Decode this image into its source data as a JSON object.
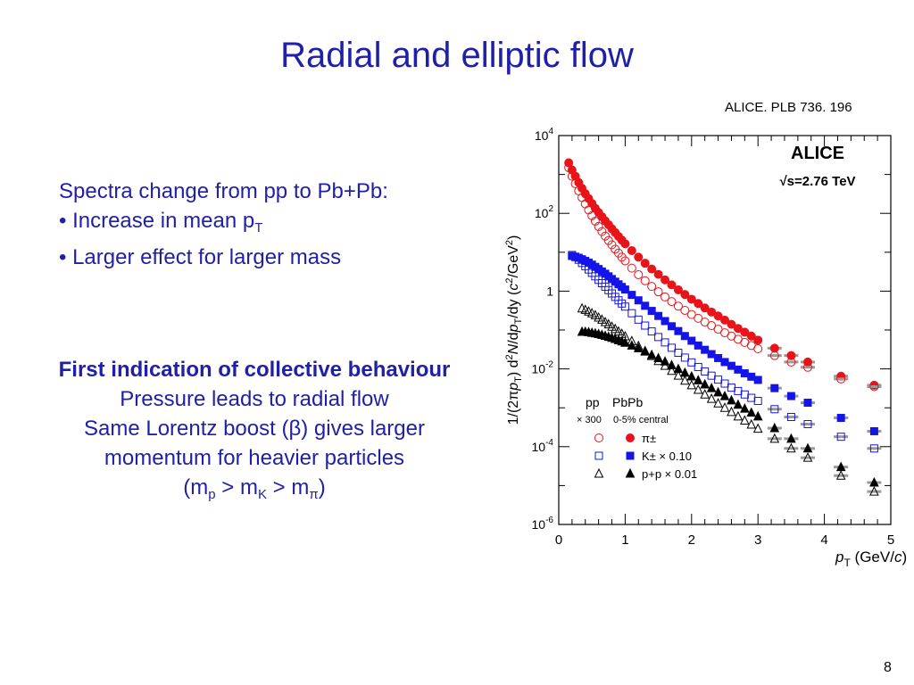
{
  "slide": {
    "title": "Radial and elliptic flow",
    "reference": "ALICE. PLB 736. 196",
    "intro": "Spectra change from pp to Pb+Pb:",
    "bullet1_text": "• Increase in mean p",
    "bullet1_sub": "T",
    "bullet2": "• Larger effect for larger mass",
    "line1": "First indication of collective behaviour",
    "line2": "Pressure leads to radial flow",
    "line3": "Same Lorentz boost (β) gives larger",
    "line4": "momentum for heavier particles",
    "mass_open": "(m",
    "mass_p": "p",
    "mass_gt1": " > m",
    "mass_K": "K",
    "mass_gt2": " > m",
    "mass_pi": "π",
    "mass_close": ")",
    "page_number": "8"
  },
  "chart_data": {
    "type": "scatter",
    "experiment": "ALICE",
    "energy": "√s=2.76 TeV",
    "xlabel": "p_T (GeV/c)",
    "ylabel": "1/(2πp_T) d²N/dp_T/dy (c²/GeV²)",
    "xlim": [
      0,
      5
    ],
    "ylim": [
      1e-06,
      10000
    ],
    "log_y": true,
    "x_ticks": [
      "0",
      "1",
      "2",
      "3",
      "4",
      "5"
    ],
    "y_ticks": [
      "10^-6",
      "10^-4",
      "10^-2",
      "1",
      "10^2",
      "10^4"
    ],
    "legend": {
      "pp_header": "pp",
      "pbpb_header": "PbPb",
      "pp_note": "× 300",
      "pbpb_note": "0-5% central",
      "entries": [
        "π±",
        "K± × 0.10",
        "p+p × 0.01"
      ]
    },
    "series": [
      {
        "name": "π±",
        "system": "PbPb",
        "marker": "filled-circle",
        "color": "#e8141a",
        "x": [
          0.15,
          0.2,
          0.25,
          0.3,
          0.35,
          0.4,
          0.45,
          0.5,
          0.55,
          0.6,
          0.65,
          0.7,
          0.75,
          0.8,
          0.85,
          0.9,
          0.95,
          1.0,
          1.1,
          1.2,
          1.3,
          1.4,
          1.5,
          1.6,
          1.7,
          1.8,
          1.9,
          2.0,
          2.1,
          2.2,
          2.3,
          2.4,
          2.5,
          2.6,
          2.7,
          2.8,
          2.9,
          3.0,
          3.25,
          3.5,
          3.75,
          4.25,
          4.75
        ],
        "y": [
          2000,
          1300,
          900,
          620,
          440,
          320,
          240,
          180,
          135,
          105,
          82,
          64,
          51,
          40,
          32,
          25.5,
          20.5,
          16.5,
          11,
          7.5,
          5.2,
          3.7,
          2.7,
          1.95,
          1.45,
          1.08,
          0.82,
          0.62,
          0.48,
          0.37,
          0.29,
          0.23,
          0.18,
          0.14,
          0.11,
          0.088,
          0.07,
          0.055,
          0.034,
          0.022,
          0.015,
          0.0065,
          0.0038
        ]
      },
      {
        "name": "π± pp",
        "system": "pp",
        "marker": "open-circle",
        "color": "#e8141a",
        "x": [
          0.15,
          0.2,
          0.25,
          0.3,
          0.35,
          0.4,
          0.45,
          0.5,
          0.55,
          0.6,
          0.65,
          0.7,
          0.75,
          0.8,
          0.85,
          0.9,
          0.95,
          1.0,
          1.1,
          1.2,
          1.3,
          1.4,
          1.5,
          1.6,
          1.7,
          1.8,
          1.9,
          2.0,
          2.1,
          2.2,
          2.3,
          2.4,
          2.5,
          2.6,
          2.7,
          2.8,
          2.9,
          3.0,
          3.25,
          3.5,
          3.75,
          4.25,
          4.75
        ],
        "y": [
          1500,
          900,
          580,
          380,
          255,
          175,
          122,
          87,
          63,
          46,
          34,
          26,
          20,
          15.5,
          12,
          9.5,
          7.5,
          6,
          3.9,
          2.65,
          1.85,
          1.32,
          0.96,
          0.71,
          0.54,
          0.41,
          0.32,
          0.25,
          0.2,
          0.16,
          0.13,
          0.105,
          0.085,
          0.07,
          0.058,
          0.048,
          0.04,
          0.033,
          0.022,
          0.015,
          0.011,
          0.0055,
          0.0035
        ]
      },
      {
        "name": "K± × 0.10",
        "system": "PbPb",
        "marker": "filled-square",
        "color": "#1414e8",
        "x": [
          0.2,
          0.25,
          0.3,
          0.35,
          0.4,
          0.45,
          0.5,
          0.55,
          0.6,
          0.65,
          0.7,
          0.75,
          0.8,
          0.85,
          0.9,
          0.95,
          1.0,
          1.1,
          1.2,
          1.3,
          1.4,
          1.5,
          1.6,
          1.7,
          1.8,
          1.9,
          2.0,
          2.1,
          2.2,
          2.3,
          2.4,
          2.5,
          2.6,
          2.7,
          2.8,
          2.9,
          3.0,
          3.25,
          3.5,
          3.75,
          4.25,
          4.75
        ],
        "y": [
          8,
          7.7,
          7.2,
          6.6,
          6,
          5.4,
          4.8,
          4.2,
          3.7,
          3.2,
          2.8,
          2.4,
          2.05,
          1.75,
          1.5,
          1.28,
          1.1,
          0.8,
          0.58,
          0.42,
          0.31,
          0.23,
          0.17,
          0.125,
          0.094,
          0.07,
          0.053,
          0.04,
          0.031,
          0.024,
          0.019,
          0.015,
          0.012,
          0.0096,
          0.0077,
          0.0063,
          0.0052,
          0.0032,
          0.002,
          0.00135,
          0.00055,
          0.00025
        ]
      },
      {
        "name": "K± pp",
        "system": "pp",
        "marker": "open-square",
        "color": "#1414e8",
        "x": [
          0.2,
          0.25,
          0.3,
          0.35,
          0.4,
          0.45,
          0.5,
          0.55,
          0.6,
          0.65,
          0.7,
          0.75,
          0.8,
          0.85,
          0.9,
          0.95,
          1.0,
          1.1,
          1.2,
          1.3,
          1.4,
          1.5,
          1.6,
          1.7,
          1.8,
          1.9,
          2.0,
          2.1,
          2.2,
          2.3,
          2.4,
          2.5,
          2.6,
          2.7,
          2.8,
          2.9,
          3.0,
          3.25,
          3.5,
          3.75,
          4.25,
          4.75
        ],
        "y": [
          8.5,
          7.5,
          6.4,
          5.3,
          4.4,
          3.6,
          2.95,
          2.4,
          1.95,
          1.6,
          1.3,
          1.06,
          0.87,
          0.71,
          0.58,
          0.48,
          0.4,
          0.27,
          0.185,
          0.13,
          0.092,
          0.066,
          0.048,
          0.035,
          0.026,
          0.0195,
          0.0147,
          0.0112,
          0.0086,
          0.0067,
          0.0053,
          0.0042,
          0.0033,
          0.0027,
          0.0022,
          0.0018,
          0.0015,
          0.00092,
          0.00058,
          0.00038,
          0.00018,
          9e-05
        ]
      },
      {
        "name": "p+p × 0.01",
        "system": "PbPb",
        "marker": "filled-triangle",
        "color": "#000000",
        "x": [
          0.35,
          0.4,
          0.45,
          0.5,
          0.55,
          0.6,
          0.65,
          0.7,
          0.75,
          0.8,
          0.85,
          0.9,
          0.95,
          1.0,
          1.1,
          1.2,
          1.3,
          1.4,
          1.5,
          1.6,
          1.7,
          1.8,
          1.9,
          2.0,
          2.1,
          2.2,
          2.3,
          2.4,
          2.5,
          2.6,
          2.7,
          2.8,
          2.9,
          3.0,
          3.25,
          3.5,
          3.75,
          4.25,
          4.75
        ],
        "y": [
          0.09,
          0.09,
          0.088,
          0.085,
          0.082,
          0.079,
          0.075,
          0.071,
          0.067,
          0.063,
          0.059,
          0.055,
          0.051,
          0.047,
          0.04,
          0.034,
          0.028,
          0.023,
          0.019,
          0.0155,
          0.0125,
          0.01,
          0.008,
          0.0064,
          0.0051,
          0.004,
          0.0032,
          0.0025,
          0.002,
          0.00155,
          0.0012,
          0.00095,
          0.00075,
          0.0006,
          0.0003,
          0.00016,
          9e-05,
          3e-05,
          1.2e-05
        ]
      },
      {
        "name": "p+p pp",
        "system": "pp",
        "marker": "open-triangle",
        "color": "#000000",
        "x": [
          0.35,
          0.4,
          0.45,
          0.5,
          0.55,
          0.6,
          0.65,
          0.7,
          0.75,
          0.8,
          0.85,
          0.9,
          0.95,
          1.0,
          1.1,
          1.2,
          1.3,
          1.4,
          1.5,
          1.6,
          1.7,
          1.8,
          1.9,
          2.0,
          2.1,
          2.2,
          2.3,
          2.4,
          2.5,
          2.6,
          2.7,
          2.8,
          2.9,
          3.0,
          3.25,
          3.5,
          3.75,
          4.25,
          4.75
        ],
        "y": [
          0.36,
          0.33,
          0.3,
          0.27,
          0.24,
          0.21,
          0.185,
          0.16,
          0.14,
          0.122,
          0.106,
          0.092,
          0.08,
          0.069,
          0.052,
          0.039,
          0.029,
          0.0215,
          0.016,
          0.012,
          0.0089,
          0.0067,
          0.005,
          0.0038,
          0.0029,
          0.0022,
          0.0017,
          0.0013,
          0.001,
          0.00078,
          0.0006,
          0.00047,
          0.00037,
          0.00029,
          0.00016,
          9e-05,
          5.2e-05,
          1.8e-05,
          7e-06
        ]
      }
    ]
  }
}
